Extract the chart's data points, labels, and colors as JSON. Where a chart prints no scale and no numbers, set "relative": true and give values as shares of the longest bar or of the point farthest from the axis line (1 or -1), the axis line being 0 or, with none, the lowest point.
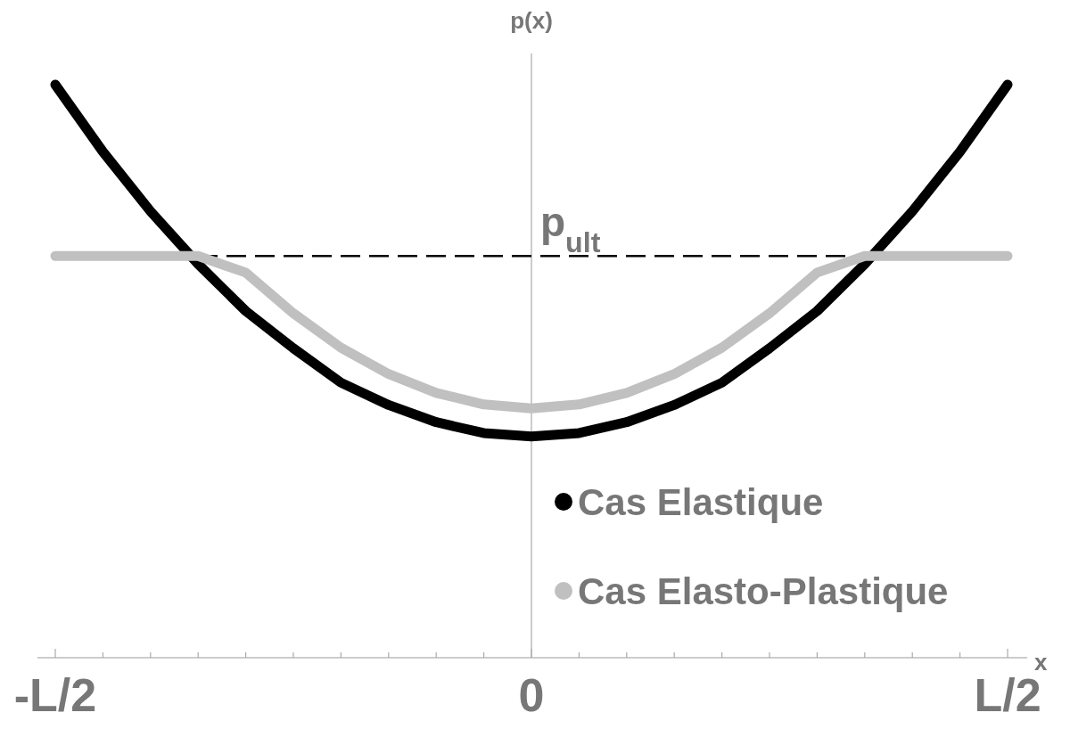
{
  "chart_data": {
    "type": "line",
    "relative": true,
    "xlabel": "x",
    "ylabel": "p(x)",
    "categories": [
      "-L/2",
      null,
      null,
      null,
      null,
      null,
      null,
      null,
      null,
      null,
      "0",
      null,
      null,
      null,
      null,
      null,
      null,
      null,
      null,
      null,
      "L/2"
    ],
    "series": [
      {
        "name": "Cas Elastique",
        "color": "#000000",
        "values": [
          1.0,
          0.883,
          0.779,
          0.687,
          0.605,
          0.54,
          0.48,
          0.441,
          0.411,
          0.392,
          0.386,
          0.392,
          0.411,
          0.441,
          0.48,
          0.54,
          0.605,
          0.687,
          0.779,
          0.883,
          1.0
        ]
      },
      {
        "name": "Cas Elasto-Plastique",
        "color": "#c0c0c0",
        "values": [
          0.701,
          0.701,
          0.701,
          0.701,
          0.672,
          0.601,
          0.541,
          0.495,
          0.462,
          0.442,
          0.435,
          0.442,
          0.462,
          0.495,
          0.541,
          0.601,
          0.672,
          0.701,
          0.701,
          0.701,
          0.701
        ]
      }
    ],
    "ref_lines": [
      {
        "axis": "y",
        "value": 0.701,
        "label": "p$_{ult}$",
        "color": "#000000",
        "line_style": "dashed"
      }
    ],
    "legend": "bottom right",
    "line_style": "solid"
  }
}
